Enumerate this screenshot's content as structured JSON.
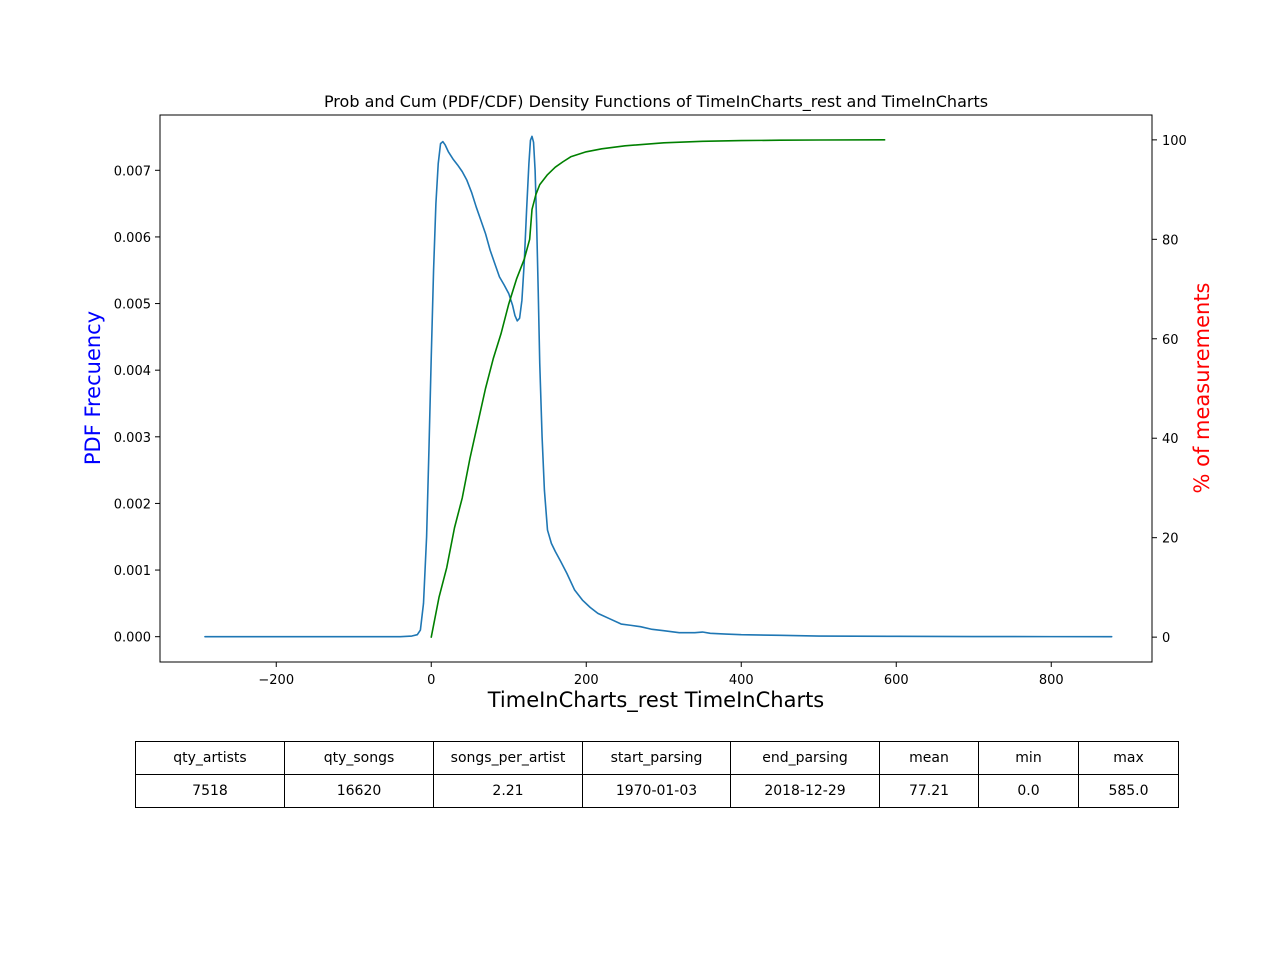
{
  "chart_data": {
    "type": "line",
    "title": "Prob and Cum (PDF/CDF) Density Functions of TimeInCharts_rest and TimeInCharts",
    "xlabel": "TimeInCharts_rest TimeInCharts",
    "ylabel_left": "PDF Frecuency",
    "ylabel_right": "% of measurements",
    "xlim": [
      -350,
      930
    ],
    "ylim_left": [
      -0.00038,
      0.00783
    ],
    "ylim_right": [
      -5,
      105
    ],
    "x_ticks": [
      -200,
      0,
      200,
      400,
      600,
      800
    ],
    "x_tick_labels": [
      "−200",
      "0",
      "200",
      "400",
      "600",
      "800"
    ],
    "y_left_ticks": [
      0,
      0.001,
      0.002,
      0.003,
      0.004,
      0.005,
      0.006,
      0.007
    ],
    "y_left_tick_labels": [
      "0.000",
      "0.001",
      "0.002",
      "0.003",
      "0.004",
      "0.005",
      "0.006",
      "0.007"
    ],
    "y_right_ticks": [
      0,
      20,
      40,
      60,
      80,
      100
    ],
    "y_right_tick_labels": [
      "0",
      "20",
      "40",
      "60",
      "80",
      "100"
    ],
    "grid": false,
    "colors": {
      "pdf": "#1f77b4",
      "cdf": "#008000",
      "ylabel_left": "#0000ff",
      "ylabel_right": "#ff0000",
      "axes": "#000000"
    },
    "series": [
      {
        "axis": "left",
        "points": [
          [
            -292,
            0
          ],
          [
            -200,
            0
          ],
          [
            -100,
            0
          ],
          [
            -40,
            0
          ],
          [
            -25,
            1e-05
          ],
          [
            -18,
            3e-05
          ],
          [
            -14,
            0.0001
          ],
          [
            -10,
            0.0005
          ],
          [
            -6,
            0.0015
          ],
          [
            -3,
            0.0028
          ],
          [
            0,
            0.0042
          ],
          [
            3,
            0.0055
          ],
          [
            6,
            0.0065
          ],
          [
            9,
            0.0071
          ],
          [
            12,
            0.0074
          ],
          [
            15,
            0.00743
          ],
          [
            18,
            0.00738
          ],
          [
            22,
            0.00728
          ],
          [
            28,
            0.00717
          ],
          [
            34,
            0.00708
          ],
          [
            40,
            0.00698
          ],
          [
            46,
            0.00685
          ],
          [
            52,
            0.00667
          ],
          [
            58,
            0.00645
          ],
          [
            64,
            0.00625
          ],
          [
            70,
            0.00605
          ],
          [
            76,
            0.0058
          ],
          [
            82,
            0.0056
          ],
          [
            88,
            0.0054
          ],
          [
            94,
            0.00528
          ],
          [
            100,
            0.00515
          ],
          [
            105,
            0.00497
          ],
          [
            108,
            0.00482
          ],
          [
            111,
            0.00474
          ],
          [
            114,
            0.00478
          ],
          [
            117,
            0.00505
          ],
          [
            120,
            0.00562
          ],
          [
            123,
            0.0064
          ],
          [
            126,
            0.0071
          ],
          [
            128,
            0.00745
          ],
          [
            130,
            0.00751
          ],
          [
            132,
            0.00742
          ],
          [
            134,
            0.007
          ],
          [
            136,
            0.0062
          ],
          [
            138,
            0.0052
          ],
          [
            140,
            0.0041
          ],
          [
            143,
            0.003
          ],
          [
            146,
            0.0022
          ],
          [
            150,
            0.0016
          ],
          [
            155,
            0.0014
          ],
          [
            160,
            0.00128
          ],
          [
            167,
            0.00113
          ],
          [
            175,
            0.00095
          ],
          [
            185,
            0.0007
          ],
          [
            195,
            0.00055
          ],
          [
            205,
            0.00044
          ],
          [
            215,
            0.00035
          ],
          [
            230,
            0.00027
          ],
          [
            245,
            0.00019
          ],
          [
            258,
            0.00017
          ],
          [
            270,
            0.00015
          ],
          [
            285,
            0.00011
          ],
          [
            300,
            9e-05
          ],
          [
            320,
            6e-05
          ],
          [
            340,
            6e-05
          ],
          [
            350,
            7e-05
          ],
          [
            360,
            5e-05
          ],
          [
            380,
            4e-05
          ],
          [
            400,
            3e-05
          ],
          [
            450,
            2e-05
          ],
          [
            500,
            1e-05
          ],
          [
            600,
            5e-06
          ],
          [
            700,
            2e-06
          ],
          [
            800,
            1e-06
          ],
          [
            878,
            0
          ]
        ]
      },
      {
        "axis": "right",
        "points": [
          [
            0,
            0
          ],
          [
            10,
            8
          ],
          [
            20,
            14
          ],
          [
            30,
            22
          ],
          [
            40,
            28
          ],
          [
            50,
            36
          ],
          [
            60,
            43
          ],
          [
            70,
            50
          ],
          [
            80,
            56
          ],
          [
            90,
            61
          ],
          [
            100,
            67
          ],
          [
            110,
            72
          ],
          [
            120,
            76
          ],
          [
            127,
            80
          ],
          [
            130,
            86
          ],
          [
            135,
            89
          ],
          [
            140,
            91
          ],
          [
            150,
            93
          ],
          [
            160,
            94.5
          ],
          [
            170,
            95.6
          ],
          [
            180,
            96.6
          ],
          [
            200,
            97.6
          ],
          [
            220,
            98.2
          ],
          [
            250,
            98.8
          ],
          [
            300,
            99.4
          ],
          [
            350,
            99.7
          ],
          [
            400,
            99.85
          ],
          [
            450,
            99.93
          ],
          [
            500,
            99.97
          ],
          [
            585,
            100
          ]
        ]
      }
    ]
  },
  "table": {
    "headers": [
      "qty_artists",
      "qty_songs",
      "songs_per_artist",
      "start_parsing",
      "end_parsing",
      "mean",
      "min",
      "max"
    ],
    "values": [
      "7518",
      "16620",
      "2.21",
      "1970-01-03",
      "2018-12-29",
      "77.21",
      "0.0",
      "585.0"
    ]
  }
}
